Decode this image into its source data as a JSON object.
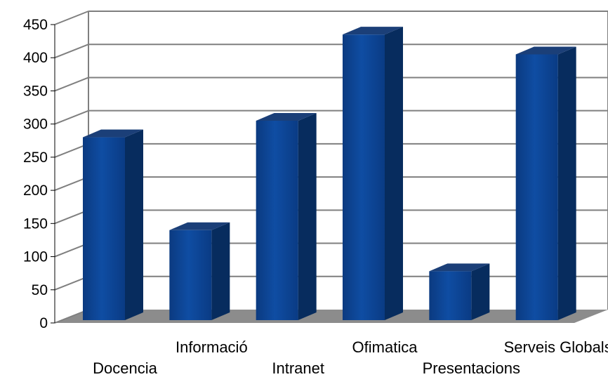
{
  "chart_data": {
    "type": "bar",
    "style": "3d-column",
    "categories": [
      "Docencia",
      "Informació",
      "Intranet",
      "Ofimatica",
      "Presentacions",
      "Serveis Globals"
    ],
    "values": [
      280,
      140,
      305,
      435,
      78,
      405
    ],
    "ylim": [
      0,
      450
    ],
    "yticks": [
      0,
      50,
      100,
      150,
      200,
      250,
      300,
      350,
      400,
      450
    ],
    "title": "",
    "xlabel": "",
    "ylabel": "",
    "grid": true,
    "legend": "none",
    "colors": {
      "bar_front": "#0d4596",
      "bar_side": "#072c5e",
      "bar_top": "#1b3f78",
      "floor": "#8c8c8c",
      "gridline": "#7f7f7f",
      "background": "#ffffff"
    }
  }
}
